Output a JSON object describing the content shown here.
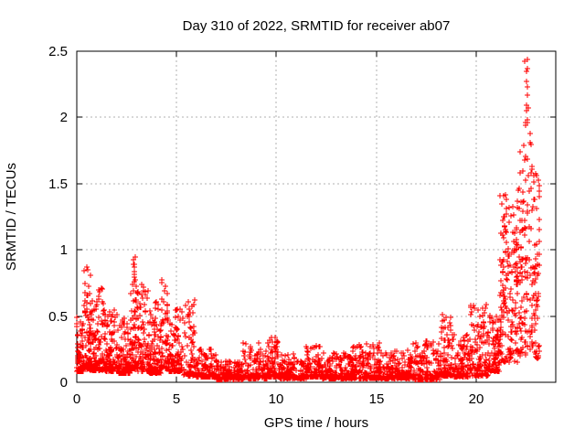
{
  "chart_data": {
    "type": "scatter",
    "title": "Day 310 of 2022, SRMTID for receiver ab07",
    "xlabel": "GPS time / hours",
    "ylabel": "SRMTID / TECUs",
    "xlim": [
      0,
      24
    ],
    "ylim": [
      0,
      2.5
    ],
    "xticks": [
      0,
      5,
      10,
      15,
      20
    ],
    "xtick_labels": [
      "0",
      "5",
      "10",
      "15",
      "20"
    ],
    "yticks": [
      0,
      0.5,
      1,
      1.5,
      2,
      2.5
    ],
    "ytick_labels": [
      "0",
      "0.5",
      "1",
      "1.5",
      "2",
      "2.5"
    ],
    "grid": true,
    "legend": "none",
    "marker": "plus",
    "marker_size_px": 7,
    "marker_color": "#ff0000",
    "grid_color": "#b0b0b0",
    "axis_color": "#000000",
    "background_color": "#ffffff",
    "seed": 310,
    "series_name": "SRMTID",
    "description": "Dense scatter of ~3000 red plus markers; baseline 0.02-0.2 TECU through midday, morning activity 0-6h up to 1.0, evening storm 21-23.2h up to 2.45",
    "envelope_segments_t0_t1_n_lo_hi_p": [
      [
        0.0,
        0.35,
        70,
        0.08,
        0.5,
        2.2
      ],
      [
        0.35,
        0.7,
        80,
        0.1,
        0.88,
        2.3
      ],
      [
        0.7,
        1.35,
        120,
        0.09,
        0.72,
        2.4
      ],
      [
        1.35,
        2.1,
        130,
        0.08,
        0.55,
        2.6
      ],
      [
        2.1,
        2.7,
        100,
        0.07,
        0.5,
        2.6
      ],
      [
        2.7,
        3.05,
        70,
        0.1,
        0.8,
        2.2
      ],
      [
        2.8,
        2.95,
        12,
        0.6,
        1.01,
        1.0
      ],
      [
        3.05,
        3.6,
        90,
        0.08,
        0.74,
        2.4
      ],
      [
        3.6,
        4.2,
        100,
        0.07,
        0.62,
        2.5
      ],
      [
        4.2,
        4.55,
        60,
        0.1,
        0.8,
        2.2
      ],
      [
        4.55,
        5.3,
        110,
        0.08,
        0.56,
        2.4
      ],
      [
        5.3,
        5.95,
        80,
        0.05,
        0.66,
        2.6
      ],
      [
        5.95,
        7.0,
        130,
        0.04,
        0.26,
        2.6
      ],
      [
        7.0,
        8.3,
        160,
        0.02,
        0.16,
        2.2
      ],
      [
        8.3,
        9.6,
        150,
        0.03,
        0.3,
        2.8
      ],
      [
        9.6,
        10.15,
        80,
        0.04,
        0.36,
        2.8
      ],
      [
        10.15,
        11.5,
        160,
        0.03,
        0.22,
        2.6
      ],
      [
        11.5,
        12.3,
        100,
        0.04,
        0.28,
        2.8
      ],
      [
        12.3,
        13.8,
        180,
        0.03,
        0.22,
        2.6
      ],
      [
        13.8,
        15.2,
        170,
        0.03,
        0.3,
        2.8
      ],
      [
        15.2,
        16.8,
        190,
        0.03,
        0.24,
        2.7
      ],
      [
        16.8,
        18.2,
        160,
        0.02,
        0.32,
        2.8
      ],
      [
        18.2,
        18.85,
        90,
        0.05,
        0.52,
        2.6
      ],
      [
        18.85,
        19.6,
        100,
        0.04,
        0.36,
        2.4
      ],
      [
        19.6,
        20.6,
        130,
        0.05,
        0.6,
        2.4
      ],
      [
        20.6,
        21.2,
        100,
        0.08,
        0.52,
        2.2
      ],
      [
        21.2,
        21.65,
        85,
        0.12,
        1.42,
        1.35
      ],
      [
        21.65,
        22.1,
        80,
        0.15,
        1.38,
        1.5
      ],
      [
        22.1,
        22.5,
        70,
        0.2,
        1.8,
        1.5
      ],
      [
        22.5,
        22.9,
        60,
        0.25,
        1.88,
        1.4
      ],
      [
        22.45,
        22.62,
        14,
        1.9,
        2.45,
        1.0
      ],
      [
        22.9,
        23.2,
        55,
        0.18,
        1.58,
        1.5
      ]
    ],
    "notable_points": {
      "max_value": 2.45,
      "max_value_hour": 22.6,
      "morning_spike_hour": 2.9,
      "morning_spike_value": 1.0,
      "data_end_hour": 23.2
    }
  }
}
